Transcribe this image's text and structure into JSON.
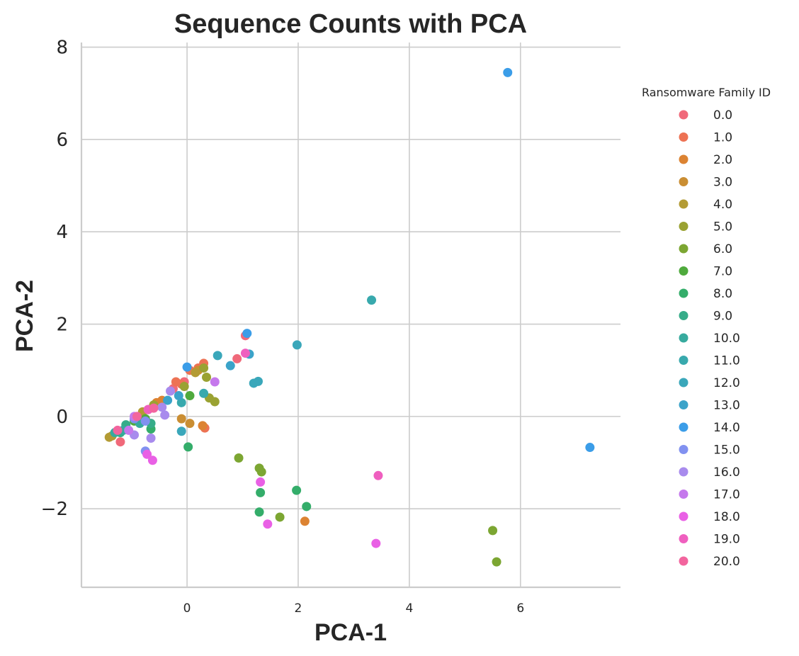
{
  "chart_data": {
    "type": "scatter",
    "title": "Sequence Counts with PCA",
    "xlabel": "PCA-1",
    "ylabel": "PCA-2",
    "xlim": [
      -1.9,
      7.8
    ],
    "ylim": [
      -3.7,
      8.1
    ],
    "xticks": [
      0,
      2,
      4,
      6
    ],
    "yticks": [
      8,
      6,
      4,
      2,
      0,
      -2
    ],
    "ytick_labels": [
      "8",
      "6",
      "4",
      "2",
      "0",
      "−2"
    ],
    "grid": true,
    "legend": {
      "title": "Ransomware Family ID",
      "placement": "right"
    },
    "series": [
      {
        "name": "0.0",
        "color": "#f0697a",
        "points": [
          [
            -1.2,
            -0.55
          ],
          [
            -0.25,
            0.6
          ],
          [
            0.9,
            1.25
          ],
          [
            1.05,
            1.75
          ],
          [
            -0.05,
            0.75
          ],
          [
            -0.7,
            0.15
          ]
        ]
      },
      {
        "name": "1.0",
        "color": "#ed7254",
        "points": [
          [
            0.3,
            1.15
          ],
          [
            0.2,
            1.05
          ],
          [
            -0.1,
            0.7
          ],
          [
            0.32,
            -0.25
          ],
          [
            -0.2,
            0.75
          ],
          [
            0.05,
            1.0
          ]
        ]
      },
      {
        "name": "2.0",
        "color": "#dc8332",
        "points": [
          [
            2.12,
            -2.27
          ],
          [
            0.28,
            -0.2
          ],
          [
            -0.45,
            0.35
          ],
          [
            -0.55,
            0.3
          ]
        ]
      },
      {
        "name": "3.0",
        "color": "#ca8e33",
        "points": [
          [
            0.05,
            -0.15
          ],
          [
            -0.1,
            -0.05
          ],
          [
            -0.6,
            0.2
          ],
          [
            0.2,
            1.0
          ]
        ]
      },
      {
        "name": "4.0",
        "color": "#b39b34",
        "points": [
          [
            -1.4,
            -0.45
          ],
          [
            -1.35,
            -0.42
          ],
          [
            0.15,
            0.95
          ],
          [
            -0.8,
            0.1
          ]
        ]
      },
      {
        "name": "5.0",
        "color": "#9aa232",
        "points": [
          [
            0.35,
            0.85
          ],
          [
            0.4,
            0.4
          ],
          [
            0.5,
            0.32
          ],
          [
            -0.6,
            0.25
          ],
          [
            0.3,
            1.05
          ],
          [
            -0.05,
            0.65
          ]
        ]
      },
      {
        "name": "6.0",
        "color": "#7ca632",
        "points": [
          [
            5.5,
            -2.47
          ],
          [
            5.57,
            -3.15
          ],
          [
            1.67,
            -2.18
          ],
          [
            1.3,
            -1.12
          ],
          [
            1.34,
            -1.2
          ],
          [
            0.93,
            -0.9
          ]
        ]
      },
      {
        "name": "7.0",
        "color": "#4faa3d",
        "points": [
          [
            0.05,
            0.45
          ],
          [
            -0.95,
            -0.1
          ],
          [
            -0.75,
            -0.05
          ]
        ]
      },
      {
        "name": "8.0",
        "color": "#34ad6a",
        "points": [
          [
            0.02,
            -0.66
          ],
          [
            1.32,
            -1.65
          ],
          [
            1.3,
            -2.07
          ],
          [
            1.97,
            -1.6
          ],
          [
            2.15,
            -1.95
          ],
          [
            -0.65,
            -0.27
          ]
        ]
      },
      {
        "name": "9.0",
        "color": "#36ac89",
        "points": [
          [
            -1.1,
            -0.18
          ],
          [
            -0.65,
            -0.15
          ],
          [
            -1.2,
            -0.35
          ]
        ]
      },
      {
        "name": "10.0",
        "color": "#37aa9e",
        "points": [
          [
            -1.3,
            -0.35
          ],
          [
            -1.15,
            -0.3
          ],
          [
            -0.85,
            -0.15
          ]
        ]
      },
      {
        "name": "11.0",
        "color": "#38a9ad",
        "points": [
          [
            3.32,
            2.52
          ],
          [
            -0.1,
            0.3
          ],
          [
            0.3,
            0.5
          ]
        ]
      },
      {
        "name": "12.0",
        "color": "#3aa7ba",
        "points": [
          [
            1.2,
            0.72
          ],
          [
            1.28,
            0.76
          ],
          [
            1.98,
            1.55
          ],
          [
            -0.1,
            -0.32
          ],
          [
            0.55,
            1.32
          ]
        ]
      },
      {
        "name": "13.0",
        "color": "#3ba3c9",
        "points": [
          [
            0.78,
            1.1
          ],
          [
            1.12,
            1.35
          ],
          [
            -0.35,
            0.35
          ],
          [
            -0.15,
            0.45
          ]
        ]
      },
      {
        "name": "14.0",
        "color": "#3b9de8",
        "points": [
          [
            5.77,
            7.45
          ],
          [
            7.25,
            -0.67
          ],
          [
            1.08,
            1.8
          ],
          [
            0.0,
            1.07
          ]
        ]
      },
      {
        "name": "15.0",
        "color": "#8191f0",
        "points": [
          [
            -0.75,
            -0.75
          ],
          [
            -0.95,
            -0.05
          ],
          [
            -0.75,
            -0.1
          ]
        ]
      },
      {
        "name": "16.0",
        "color": "#a88bed",
        "points": [
          [
            -0.4,
            0.03
          ],
          [
            -0.65,
            -0.47
          ],
          [
            -0.95,
            -0.4
          ],
          [
            -0.3,
            0.55
          ],
          [
            -0.45,
            0.2
          ]
        ]
      },
      {
        "name": "17.0",
        "color": "#c578ec",
        "points": [
          [
            0.5,
            0.75
          ],
          [
            -1.05,
            -0.3
          ],
          [
            -0.95,
            0.0
          ]
        ]
      },
      {
        "name": "18.0",
        "color": "#e960e5",
        "points": [
          [
            1.45,
            -2.33
          ],
          [
            3.4,
            -2.75
          ],
          [
            1.32,
            -1.42
          ],
          [
            -0.62,
            -0.95
          ],
          [
            -0.72,
            -0.82
          ]
        ]
      },
      {
        "name": "19.0",
        "color": "#ef5fbf",
        "points": [
          [
            3.44,
            -1.28
          ],
          [
            1.05,
            1.37
          ],
          [
            -0.7,
            0.15
          ]
        ]
      },
      {
        "name": "20.0",
        "color": "#f2659e",
        "points": [
          [
            -1.25,
            -0.3
          ],
          [
            -0.9,
            0.0
          ],
          [
            -0.6,
            0.18
          ]
        ]
      }
    ]
  }
}
